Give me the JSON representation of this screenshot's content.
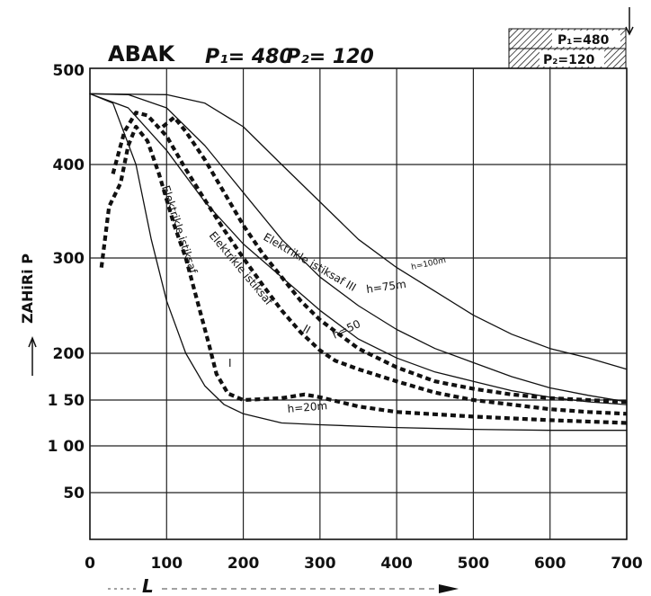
{
  "chart_data": {
    "type": "line",
    "title": "ABAK",
    "title_params": [
      "P₁= 480",
      "P₂= 120"
    ],
    "inset": {
      "top": "P₁=480",
      "bottom": "P₂=120"
    },
    "xlabel": "L",
    "ylabel": "ZAHiRi P",
    "x_ticks": [
      "0",
      "100",
      "200",
      "300",
      "400",
      "500",
      "600",
      "700"
    ],
    "y_ticks": [
      {
        "value": 50,
        "label": "50"
      },
      {
        "value": 100,
        "label": "1 00"
      },
      {
        "value": 150,
        "label": "1 50"
      },
      {
        "value": 200,
        "label": "200"
      },
      {
        "value": 300,
        "label": "300"
      },
      {
        "value": 400,
        "label": "400"
      },
      {
        "value": 500,
        "label": "500"
      }
    ],
    "xlim": [
      0,
      700
    ],
    "grid": true,
    "series": [
      {
        "name": "h=100",
        "style": "solid",
        "points": [
          [
            0,
            475
          ],
          [
            100,
            474
          ],
          [
            150,
            465
          ],
          [
            200,
            440
          ],
          [
            250,
            400
          ],
          [
            300,
            360
          ],
          [
            350,
            320
          ],
          [
            400,
            290
          ],
          [
            450,
            265
          ],
          [
            500,
            240
          ],
          [
            550,
            220
          ],
          [
            600,
            205
          ],
          [
            650,
            195
          ],
          [
            700,
            183
          ]
        ]
      },
      {
        "name": "h=75",
        "style": "solid",
        "points": [
          [
            0,
            475
          ],
          [
            50,
            474
          ],
          [
            100,
            460
          ],
          [
            150,
            420
          ],
          [
            200,
            370
          ],
          [
            250,
            320
          ],
          [
            300,
            280
          ],
          [
            350,
            250
          ],
          [
            400,
            225
          ],
          [
            450,
            205
          ],
          [
            500,
            190
          ],
          [
            550,
            175
          ],
          [
            600,
            163
          ],
          [
            650,
            155
          ],
          [
            700,
            148
          ]
        ]
      },
      {
        "name": "h=50",
        "style": "solid",
        "points": [
          [
            0,
            475
          ],
          [
            50,
            460
          ],
          [
            100,
            415
          ],
          [
            150,
            360
          ],
          [
            200,
            315
          ],
          [
            250,
            280
          ],
          [
            300,
            245
          ],
          [
            350,
            215
          ],
          [
            400,
            195
          ],
          [
            450,
            180
          ],
          [
            500,
            170
          ],
          [
            550,
            160
          ],
          [
            600,
            153
          ],
          [
            650,
            148
          ],
          [
            700,
            145
          ]
        ]
      },
      {
        "name": "h=20",
        "style": "solid",
        "points": [
          [
            0,
            475
          ],
          [
            30,
            465
          ],
          [
            60,
            400
          ],
          [
            80,
            320
          ],
          [
            100,
            255
          ],
          [
            125,
            200
          ],
          [
            150,
            165
          ],
          [
            175,
            145
          ],
          [
            200,
            135
          ],
          [
            250,
            125
          ],
          [
            300,
            123
          ],
          [
            400,
            120
          ],
          [
            500,
            118
          ],
          [
            600,
            117
          ],
          [
            700,
            117
          ]
        ]
      },
      {
        "name": "Elektrikle istiksaf I",
        "style": "dashed",
        "points": [
          [
            15,
            290
          ],
          [
            25,
            355
          ],
          [
            40,
            380
          ],
          [
            50,
            420
          ],
          [
            60,
            440
          ],
          [
            75,
            425
          ],
          [
            90,
            390
          ],
          [
            110,
            335
          ],
          [
            125,
            300
          ],
          [
            140,
            255
          ],
          [
            155,
            210
          ],
          [
            165,
            178
          ],
          [
            180,
            157
          ],
          [
            200,
            150
          ],
          [
            250,
            152
          ],
          [
            280,
            156
          ],
          [
            300,
            153
          ],
          [
            350,
            143
          ],
          [
            400,
            137
          ],
          [
            500,
            132
          ],
          [
            600,
            128
          ],
          [
            700,
            125
          ]
        ]
      },
      {
        "name": "Elektrikle istiksaf II",
        "style": "dashed",
        "points": [
          [
            30,
            390
          ],
          [
            45,
            435
          ],
          [
            60,
            455
          ],
          [
            75,
            452
          ],
          [
            100,
            430
          ],
          [
            125,
            395
          ],
          [
            150,
            362
          ],
          [
            175,
            330
          ],
          [
            200,
            300
          ],
          [
            225,
            272
          ],
          [
            250,
            245
          ],
          [
            275,
            222
          ],
          [
            300,
            203
          ],
          [
            320,
            192
          ],
          [
            350,
            183
          ],
          [
            400,
            170
          ],
          [
            450,
            158
          ],
          [
            500,
            150
          ],
          [
            550,
            145
          ],
          [
            600,
            140
          ],
          [
            650,
            137
          ],
          [
            700,
            135
          ]
        ]
      },
      {
        "name": "Elektrikle istiksaf III",
        "style": "dashed",
        "points": [
          [
            95,
            440
          ],
          [
            110,
            450
          ],
          [
            125,
            435
          ],
          [
            150,
            405
          ],
          [
            175,
            370
          ],
          [
            200,
            335
          ],
          [
            225,
            305
          ],
          [
            250,
            280
          ],
          [
            275,
            255
          ],
          [
            300,
            235
          ],
          [
            350,
            205
          ],
          [
            400,
            185
          ],
          [
            450,
            170
          ],
          [
            500,
            162
          ],
          [
            550,
            156
          ],
          [
            600,
            152
          ],
          [
            650,
            150
          ],
          [
            700,
            148
          ]
        ]
      }
    ]
  },
  "labels": {
    "h100": "h=100m",
    "h75": "h=75m",
    "h50": "h=50",
    "h20": "h=20m",
    "el1": "Elektrikle istiksaf",
    "el1b": "I",
    "el2": "Elektrikle istiksaf",
    "el2b": "II",
    "el3": "Elektrikle istiksaf III"
  }
}
